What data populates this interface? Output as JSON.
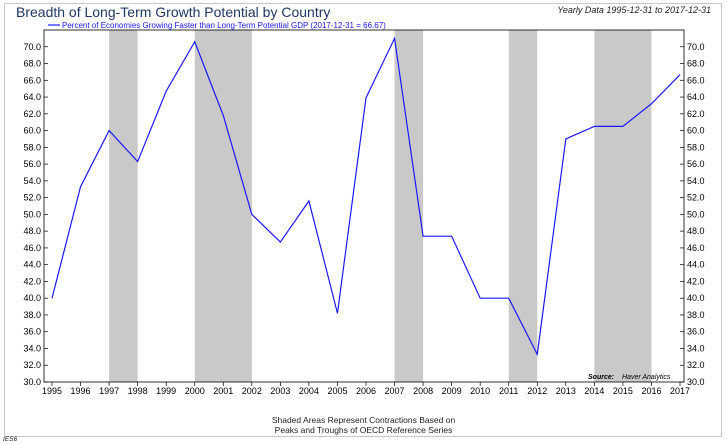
{
  "header": {
    "title": "Breadth of Long-Term Growth Potential by Country",
    "subtitle": "Yearly Data 1995-12-31 to 2017-12-31"
  },
  "footer": {
    "line1": "Shaded Areas Represent Contractions Based on",
    "line2": "Peaks and Troughs of OECD Reference Series",
    "corner": "IES6"
  },
  "source": {
    "label": "Source:",
    "text": "Haver Analytics"
  },
  "colors": {
    "line": "#1a1aff",
    "shade": "#c9c9c9",
    "axis": "#000000"
  },
  "chart_data": {
    "type": "line",
    "x": [
      1995,
      1996,
      1997,
      1998,
      1999,
      2000,
      2001,
      2002,
      2003,
      2004,
      2005,
      2006,
      2007,
      2008,
      2009,
      2010,
      2011,
      2012,
      2013,
      2014,
      2015,
      2016,
      2017
    ],
    "series": [
      {
        "name": "Percent of Economies Growing Faster than Long-Term Potential GDP (2017-12-31 = 66.67)",
        "values": [
          40.0,
          53.3,
          60.0,
          56.3,
          64.7,
          70.6,
          61.8,
          50.0,
          46.7,
          51.6,
          38.2,
          63.9,
          71.0,
          47.4,
          47.4,
          40.0,
          40.0,
          33.3,
          59.0,
          60.5,
          60.5,
          63.2,
          66.67
        ]
      }
    ],
    "shaded_periods": [
      [
        1997,
        1998
      ],
      [
        2000,
        2002
      ],
      [
        2007,
        2008
      ],
      [
        2011,
        2012
      ],
      [
        2014,
        2016
      ]
    ],
    "ylim": [
      30,
      72
    ],
    "y_ticks": [
      "30.0",
      "32.0",
      "34.0",
      "36.0",
      "38.0",
      "40.0",
      "42.0",
      "44.0",
      "46.0",
      "48.0",
      "50.0",
      "52.0",
      "54.0",
      "56.0",
      "58.0",
      "60.0",
      "62.0",
      "64.0",
      "66.0",
      "68.0",
      "70.0"
    ],
    "x_ticks": [
      "1995",
      "1996",
      "1997",
      "1998",
      "1999",
      "2000",
      "2001",
      "2002",
      "2003",
      "2004",
      "2005",
      "2006",
      "2007",
      "2008",
      "2009",
      "2010",
      "2011",
      "2012",
      "2013",
      "2014",
      "2015",
      "2016",
      "2017"
    ],
    "legend_position": "top-left",
    "grid": false
  }
}
